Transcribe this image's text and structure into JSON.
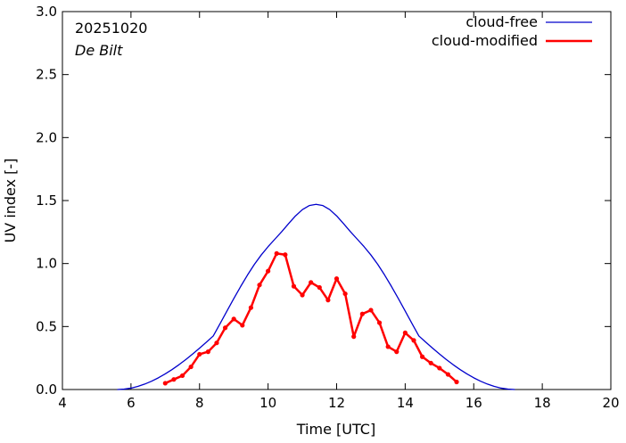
{
  "chart_data": {
    "type": "line",
    "xlabel": "Time  [UTC]",
    "ylabel": "UV index  [-]",
    "xlim": [
      4,
      20
    ],
    "ylim": [
      0,
      3.0
    ],
    "x_ticks": [
      4,
      6,
      8,
      10,
      12,
      14,
      16,
      18,
      20
    ],
    "y_ticks": [
      0,
      0.5,
      1.0,
      1.5,
      2.0,
      2.5,
      3.0
    ],
    "y_tick_labels": [
      "0.0",
      "0.5",
      "1.0",
      "1.5",
      "2.0",
      "2.5",
      "3.0"
    ],
    "grid": false,
    "legend_position": "top-right",
    "annotations": [
      "20251020",
      "De Bilt"
    ],
    "series": [
      {
        "name": "cloud-free",
        "color": "#0000cc",
        "marker": "none",
        "x": [
          5.6,
          5.8,
          6.0,
          6.2,
          6.4,
          6.6,
          6.8,
          7.0,
          7.2,
          7.4,
          7.6,
          7.8,
          8.0,
          8.2,
          8.4,
          8.6,
          8.8,
          9.0,
          9.2,
          9.4,
          9.6,
          9.8,
          10.0,
          10.2,
          10.4,
          10.6,
          10.8,
          11.0,
          11.2,
          11.4,
          11.6,
          11.8,
          12.0,
          12.2,
          12.4,
          12.6,
          12.8,
          13.0,
          13.2,
          13.4,
          13.6,
          13.8,
          14.0,
          14.2,
          14.4,
          14.6,
          14.8,
          15.0,
          15.2,
          15.4,
          15.6,
          15.8,
          16.0,
          16.2,
          16.4,
          16.6,
          16.8,
          17.0,
          17.2
        ],
        "values": [
          0.0,
          0.003,
          0.011,
          0.025,
          0.043,
          0.066,
          0.093,
          0.124,
          0.159,
          0.197,
          0.238,
          0.282,
          0.328,
          0.376,
          0.425,
          0.523,
          0.623,
          0.722,
          0.818,
          0.909,
          0.993,
          1.068,
          1.134,
          1.194,
          1.254,
          1.317,
          1.378,
          1.428,
          1.46,
          1.47,
          1.46,
          1.428,
          1.378,
          1.317,
          1.254,
          1.194,
          1.134,
          1.068,
          0.993,
          0.909,
          0.818,
          0.722,
          0.623,
          0.523,
          0.425,
          0.376,
          0.328,
          0.282,
          0.238,
          0.197,
          0.159,
          0.124,
          0.093,
          0.066,
          0.043,
          0.025,
          0.011,
          0.003,
          0.0
        ]
      },
      {
        "name": "cloud-modified",
        "color": "#ff0000",
        "marker": "circle",
        "x": [
          7.0,
          7.25,
          7.5,
          7.75,
          8.0,
          8.25,
          8.5,
          8.75,
          9.0,
          9.25,
          9.5,
          9.75,
          10.0,
          10.25,
          10.5,
          10.75,
          11.0,
          11.25,
          11.5,
          11.75,
          12.0,
          12.25,
          12.5,
          12.75,
          13.0,
          13.25,
          13.5,
          13.75,
          14.0,
          14.25,
          14.5,
          14.75,
          15.0,
          15.25,
          15.5
        ],
        "values": [
          0.05,
          0.08,
          0.11,
          0.18,
          0.28,
          0.3,
          0.37,
          0.49,
          0.56,
          0.51,
          0.65,
          0.83,
          0.94,
          1.08,
          1.07,
          0.82,
          0.75,
          0.85,
          0.81,
          0.71,
          0.88,
          0.76,
          0.42,
          0.6,
          0.63,
          0.53,
          0.34,
          0.3,
          0.45,
          0.39,
          0.26,
          0.21,
          0.17,
          0.12,
          0.06
        ]
      }
    ]
  }
}
